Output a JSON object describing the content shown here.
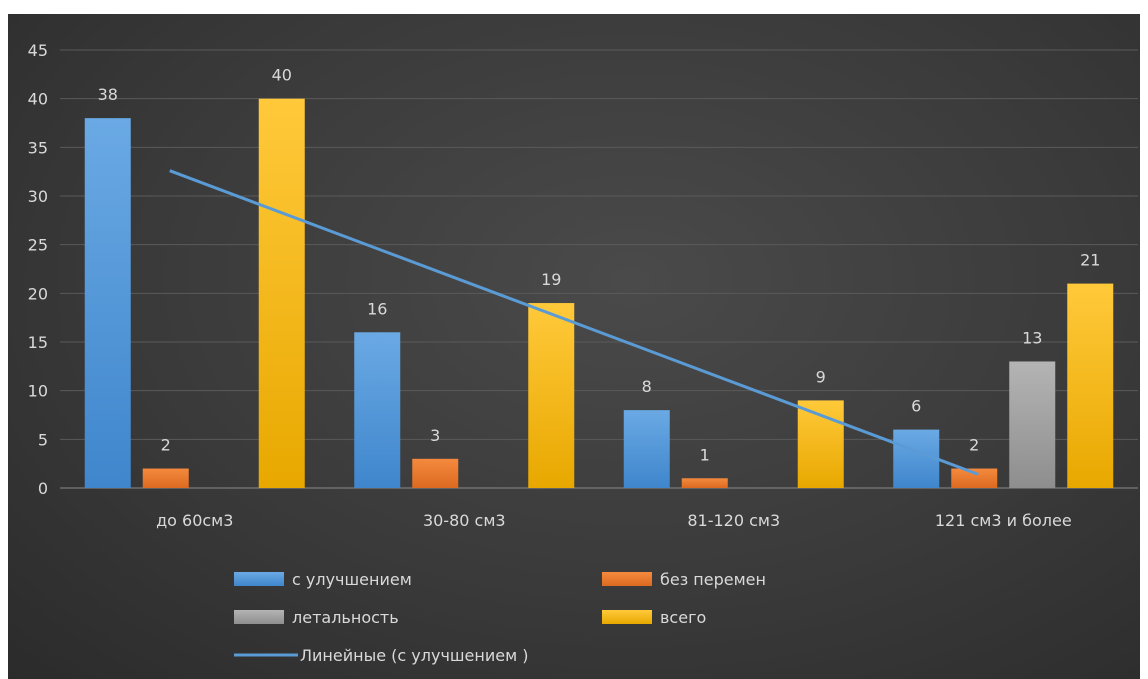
{
  "chart_data": {
    "type": "bar",
    "categories": [
      "до 60см3",
      "30-80 см3",
      "81-120 см3",
      "121 см3 и более"
    ],
    "series": [
      {
        "name": "с улучшением",
        "values": [
          38,
          16,
          8,
          6
        ],
        "color": "#5b9bd5"
      },
      {
        "name": "без перемен",
        "values": [
          2,
          3,
          1,
          2
        ],
        "color": "#ed7d31"
      },
      {
        "name": "летальность",
        "values": [
          null,
          null,
          null,
          13
        ],
        "color": "#a5a5a5"
      },
      {
        "name": "всего",
        "values": [
          40,
          19,
          9,
          21
        ],
        "color": "#ffc000"
      }
    ],
    "trendline": {
      "name": "Линейные (с улучшением )",
      "of_series": "с улучшением",
      "type": "linear",
      "color": "#5b9bd5"
    },
    "ylim": [
      0,
      45
    ],
    "yticks": [
      0,
      5,
      10,
      15,
      20,
      25,
      30,
      35,
      40,
      45
    ],
    "grid": true,
    "legend_position": "bottom",
    "data_labels": true
  }
}
